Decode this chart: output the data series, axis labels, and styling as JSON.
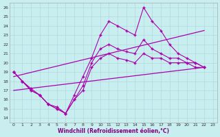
{
  "xlabel": "Windchill (Refroidissement éolien,°C)",
  "bg_color": "#c8eef0",
  "line_color": "#aa00aa",
  "grid_color": "#b0d8dc",
  "xlim": [
    -0.5,
    23.5
  ],
  "ylim": [
    13.5,
    26.5
  ],
  "yticks": [
    14,
    15,
    16,
    17,
    18,
    19,
    20,
    21,
    22,
    23,
    24,
    25,
    26
  ],
  "xticks": [
    0,
    1,
    2,
    3,
    4,
    5,
    6,
    7,
    8,
    9,
    10,
    11,
    12,
    13,
    14,
    15,
    16,
    17,
    18,
    19,
    20,
    21,
    22,
    23
  ],
  "hours": [
    0,
    1,
    2,
    3,
    4,
    5,
    6,
    7,
    8,
    9,
    10,
    11,
    12,
    13,
    14,
    15,
    16,
    17,
    18,
    19,
    20,
    21,
    22,
    23
  ],
  "line_top": [
    19,
    18,
    17,
    16.5,
    15.5,
    15.2,
    14.5,
    16.5,
    18.5,
    20.5,
    23,
    24.5,
    24,
    23.5,
    23,
    26,
    24.5,
    23.5,
    22,
    21,
    20.5,
    20,
    19.5,
    null
  ],
  "line_mid": [
    19,
    18,
    17.2,
    16.5,
    15.5,
    15,
    14.5,
    16,
    17.5,
    20,
    21.5,
    22,
    21.5,
    21.2,
    21,
    22.5,
    21.5,
    21,
    20.5,
    20.5,
    20,
    20,
    19.5,
    null
  ],
  "line_bot": [
    19,
    18,
    17,
    16.5,
    15.5,
    15,
    14.5,
    16,
    17,
    19.5,
    20.5,
    21,
    20.5,
    20.3,
    20,
    21,
    20.5,
    20.5,
    20,
    20,
    20,
    19.5,
    19.5,
    null
  ],
  "trend1_x": [
    0,
    22
  ],
  "trend1_y": [
    18.5,
    23.5
  ],
  "trend2_x": [
    0,
    22
  ],
  "trend2_y": [
    17,
    19.5
  ]
}
